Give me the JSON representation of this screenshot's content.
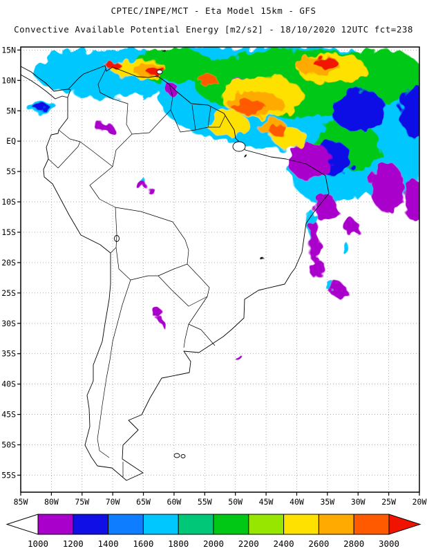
{
  "header": {
    "line1": "CPTEC/INPE/MCT -  Eta Model 15km - GFS",
    "line2": "Convective Available Potential Energy [m2/s2] - 18/10/2020 12UTC fct=238"
  },
  "axes": {
    "lat_labels": [
      "15N",
      "10N",
      "5N",
      "EQ",
      "5S",
      "10S",
      "15S",
      "20S",
      "25S",
      "30S",
      "35S",
      "40S",
      "45S",
      "50S",
      "55S"
    ],
    "lon_labels": [
      "85W",
      "80W",
      "75W",
      "70W",
      "65W",
      "60W",
      "55W",
      "50W",
      "45W",
      "40W",
      "35W",
      "30W",
      "25W",
      "20W"
    ]
  },
  "chart_data": {
    "type": "heatmap",
    "source": "CPTEC/INPE/MCT",
    "model": "Eta Model 15km - GFS",
    "variable": "Convective Available Potential Energy",
    "units": "m2/s2",
    "valid": "18/10/2020 12UTC",
    "forecast": "fct=238",
    "lon_range_deg": [
      -85,
      -20
    ],
    "lat_range_deg": [
      -57.8,
      15.5
    ],
    "lat_ticks_deg": [
      15,
      10,
      5,
      0,
      -5,
      -10,
      -15,
      -20,
      -25,
      -30,
      -35,
      -40,
      -45,
      -50,
      -55
    ],
    "lon_ticks_deg": [
      -85,
      -80,
      -75,
      -70,
      -65,
      -60,
      -55,
      -50,
      -45,
      -40,
      -35,
      -30,
      -25,
      -20
    ],
    "levels": [
      1000,
      1200,
      1400,
      1600,
      1800,
      2000,
      2200,
      2400,
      2600,
      2800,
      3000
    ],
    "palette": [
      "#aa00cc",
      "#0f0fe6",
      "#0f7dff",
      "#00c8ff",
      "#00c878",
      "#00c814",
      "#96e600",
      "#ffe100",
      "#ffaa00",
      "#ff5a00"
    ],
    "under_color": "#ffffff",
    "over_color": "#f01400",
    "field_blobs": [
      {
        "v": 1700,
        "lon": -41.1,
        "lat": 7.3,
        "rlon": 21.4,
        "rlat": 8.5
      },
      {
        "v": 1700,
        "lon": -25.3,
        "lat": 0.5,
        "rlon": 6.8,
        "rlat": 10.2
      },
      {
        "v": 1700,
        "lon": -70.4,
        "lat": 11.3,
        "rlon": 12.4,
        "rlat": 4.0
      },
      {
        "v": 1700,
        "lon": -54.6,
        "lat": 10.7,
        "rlon": 9.0,
        "rlat": 5.1
      },
      {
        "v": 1700,
        "lon": -34.3,
        "lat": -5.2,
        "rlon": 6.8,
        "rlat": 5.1
      },
      {
        "v": 1700,
        "lon": -81.6,
        "lat": 5.6,
        "rlon": 2.5,
        "rlat": 0.9
      },
      {
        "v": 1700,
        "lon": -71.3,
        "lat": 2.4,
        "rlon": 1.1,
        "rlat": 0.7
      },
      {
        "v": 1700,
        "lon": -65.1,
        "lat": -6.8,
        "rlon": 0.7,
        "rlat": 0.6
      },
      {
        "v": 1700,
        "lon": -37.5,
        "lat": -14.3,
        "rlon": 0.7,
        "rlat": 2.8
      },
      {
        "v": 1700,
        "lon": -32.0,
        "lat": -17.7,
        "rlon": 0.7,
        "rlat": 0.9
      },
      {
        "v": 1700,
        "lon": -34.3,
        "lat": -24.0,
        "rlon": 0.9,
        "rlat": 0.7
      },
      {
        "v": 1700,
        "lon": -22.5,
        "lat": -1.8,
        "rlon": 1.7,
        "rlat": 4.6
      },
      {
        "v": 2100,
        "lon": -39.9,
        "lat": 9.6,
        "rlon": 16.9,
        "rlat": 5.7
      },
      {
        "v": 2100,
        "lon": -26.4,
        "lat": 10.7,
        "rlon": 6.8,
        "rlat": 4.6
      },
      {
        "v": 2100,
        "lon": -60.2,
        "lat": 12.4,
        "rlon": 6.8,
        "rlat": 2.8
      },
      {
        "v": 2100,
        "lon": -32.0,
        "lat": -0.7,
        "rlon": 5.6,
        "rlat": 4.0
      },
      {
        "v": 2100,
        "lon": -21.4,
        "lat": 9.6,
        "rlon": 2.0,
        "rlat": 4.0
      },
      {
        "v": 1300,
        "lon": -29.8,
        "lat": 5.0,
        "rlon": 4.5,
        "rlat": 3.4
      },
      {
        "v": 1300,
        "lon": -34.3,
        "lat": -2.9,
        "rlon": 3.4,
        "rlat": 2.8
      },
      {
        "v": 1300,
        "lon": -20.8,
        "lat": 5.0,
        "rlon": 2.3,
        "rlat": 4.6
      },
      {
        "v": 1300,
        "lon": -81.6,
        "lat": 5.6,
        "rlon": 1.4,
        "rlat": 0.6
      },
      {
        "v": 1100,
        "lon": -37.7,
        "lat": -3.5,
        "rlon": 3.4,
        "rlat": 3.2
      },
      {
        "v": 1100,
        "lon": -25.3,
        "lat": -7.5,
        "rlon": 2.8,
        "rlat": 4.0
      },
      {
        "v": 1100,
        "lon": -20.8,
        "lat": -9.8,
        "rlon": 1.7,
        "rlat": 3.4
      },
      {
        "v": 1100,
        "lon": -49.0,
        "lat": 9.0,
        "rlon": 1.7,
        "rlat": 1.4
      },
      {
        "v": 1100,
        "lon": -60.2,
        "lat": 8.4,
        "rlon": 1.1,
        "rlat": 0.9
      },
      {
        "v": 1100,
        "lon": -71.3,
        "lat": 2.2,
        "rlon": 1.4,
        "rlat": 0.9
      },
      {
        "v": 1100,
        "lon": -35.4,
        "lat": -10.9,
        "rlon": 2.0,
        "rlat": 2.3
      },
      {
        "v": 1100,
        "lon": -31.0,
        "lat": -14.3,
        "rlon": 1.1,
        "rlat": 1.4
      },
      {
        "v": 1100,
        "lon": -37.1,
        "lat": -16.6,
        "rlon": 0.9,
        "rlat": 3.4
      },
      {
        "v": 1100,
        "lon": -36.6,
        "lat": -21.1,
        "rlon": 1.1,
        "rlat": 1.7
      },
      {
        "v": 1100,
        "lon": -33.2,
        "lat": -24.6,
        "rlon": 1.4,
        "rlat": 1.1
      },
      {
        "v": 1100,
        "lon": -62.5,
        "lat": -28.5,
        "rlon": 0.7,
        "rlat": 0.9
      },
      {
        "v": 1100,
        "lon": -61.9,
        "lat": -29.8,
        "rlon": 0.5,
        "rlat": 0.6
      },
      {
        "v": 1100,
        "lon": -49.5,
        "lat": -35.6,
        "rlon": 0.6,
        "rlat": 0.5
      },
      {
        "v": 1100,
        "lon": -65.3,
        "lat": -7.3,
        "rlon": 0.9,
        "rlat": 0.7
      },
      {
        "v": 1100,
        "lon": -63.8,
        "lat": -8.1,
        "rlon": 0.6,
        "rlat": 0.5
      },
      {
        "v": 2500,
        "lon": -45.6,
        "lat": 7.3,
        "rlon": 6.8,
        "rlat": 3.4
      },
      {
        "v": 2500,
        "lon": -34.3,
        "lat": 11.9,
        "rlon": 5.6,
        "rlat": 2.5
      },
      {
        "v": 2500,
        "lon": -65.8,
        "lat": 11.9,
        "rlon": 4.5,
        "rlat": 1.6
      },
      {
        "v": 2500,
        "lon": -51.2,
        "lat": 2.8,
        "rlon": 3.4,
        "rlat": 2.0
      },
      {
        "v": 2500,
        "lon": -41.1,
        "lat": 0.5,
        "rlon": 2.8,
        "rlat": 1.7
      },
      {
        "v": 2700,
        "lon": -46.7,
        "lat": 6.2,
        "rlon": 4.5,
        "rlat": 2.0
      },
      {
        "v": 2700,
        "lon": -36.6,
        "lat": 12.4,
        "rlon": 3.4,
        "rlat": 1.4
      },
      {
        "v": 2700,
        "lon": -64.2,
        "lat": 11.9,
        "rlon": 2.8,
        "rlat": 1.1
      },
      {
        "v": 2700,
        "lon": -43.9,
        "lat": 2.2,
        "rlon": 2.3,
        "rlat": 1.4
      },
      {
        "v": 2900,
        "lon": -47.8,
        "lat": 5.6,
        "rlon": 2.8,
        "rlat": 1.1
      },
      {
        "v": 3100,
        "lon": -35.4,
        "lat": 13.0,
        "rlon": 2.0,
        "rlat": 0.9
      },
      {
        "v": 3100,
        "lon": -63.0,
        "lat": 11.6,
        "rlon": 1.6,
        "rlat": 0.7
      },
      {
        "v": 2900,
        "lon": -42.8,
        "lat": 1.6,
        "rlon": 1.4,
        "rlat": 0.9
      },
      {
        "v": 2900,
        "lon": -54.6,
        "lat": 10.2,
        "rlon": 1.6,
        "rlat": 0.7
      },
      {
        "v": 3100,
        "lon": -69.8,
        "lat": 12.4,
        "rlon": 1.2,
        "rlat": 0.6
      }
    ],
    "specks": [
      {
        "lon": -48.4,
        "lat": -2.4
      },
      {
        "lon": -45.2,
        "lat": -19.8
      },
      {
        "lon": -61.7,
        "lat": 15.0
      }
    ]
  }
}
